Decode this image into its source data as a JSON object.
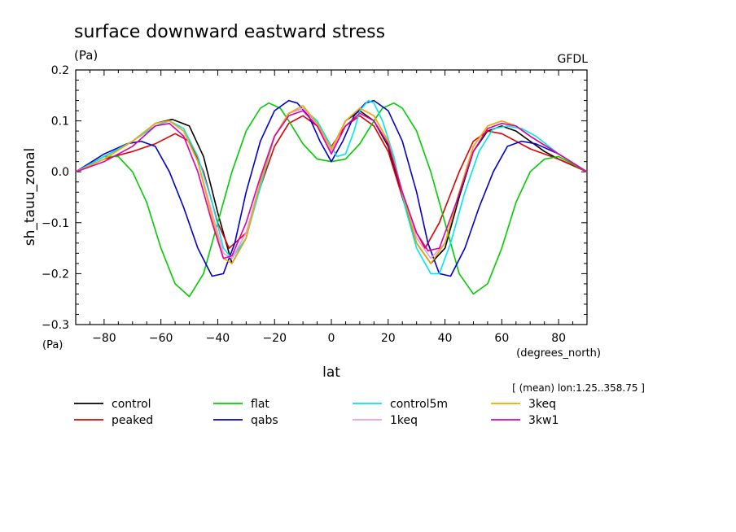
{
  "chart_data": {
    "type": "line",
    "title": "surface downward eastward stress",
    "units_label": "(Pa)",
    "source_label": "GFDL",
    "ylabel": "sh_tauu_zonal",
    "ylabel_units": "(Pa)",
    "xlabel": "lat",
    "xlabel_units": "(degrees_north)",
    "subset_note": "[ (mean) lon:1.25..358.75 ]",
    "xlim": [
      -90,
      90
    ],
    "ylim": [
      -0.3,
      0.2
    ],
    "xticks": [
      -80,
      -60,
      -40,
      -20,
      0,
      20,
      40,
      60,
      80
    ],
    "xtick_labels": [
      "−80",
      "−60",
      "−40",
      "−20",
      "0",
      "20",
      "40",
      "60",
      "80"
    ],
    "yticks": [
      -0.3,
      -0.2,
      -0.1,
      0.0,
      0.1,
      0.2
    ],
    "ytick_labels": [
      "−0.3",
      "−0.2",
      "−0.1",
      "0.0",
      "0.1",
      "0.2"
    ],
    "grid": false,
    "legend_position": "bottom",
    "series": [
      {
        "name": "control",
        "color": "#000000",
        "x": [
          -90,
          -80,
          -70,
          -62,
          -56,
          -50,
          -45,
          -40,
          -35,
          -30,
          -25,
          -20,
          -15,
          -10,
          -5,
          0,
          5,
          10,
          15,
          20,
          25,
          30,
          35,
          40,
          45,
          50,
          55,
          60,
          65,
          70,
          75,
          80,
          90
        ],
        "y": [
          0,
          0.03,
          0.06,
          0.095,
          0.103,
          0.09,
          0.03,
          -0.08,
          -0.18,
          -0.13,
          -0.02,
          0.07,
          0.115,
          0.125,
          0.095,
          0.04,
          0.1,
          0.12,
          0.1,
          0.05,
          -0.05,
          -0.14,
          -0.18,
          -0.15,
          -0.05,
          0.04,
          0.08,
          0.09,
          0.08,
          0.06,
          0.04,
          0.025,
          0
        ]
      },
      {
        "name": "peaked",
        "color": "#dd0000",
        "x": [
          -90,
          -80,
          -70,
          -62,
          -55,
          -50,
          -45,
          -40,
          -36,
          -30,
          -25,
          -20,
          -15,
          -10,
          -5,
          0,
          5,
          10,
          15,
          20,
          25,
          30,
          33,
          38,
          45,
          50,
          55,
          60,
          65,
          70,
          80,
          90
        ],
        "y": [
          0,
          0.025,
          0.04,
          0.055,
          0.075,
          0.06,
          0.0,
          -0.1,
          -0.15,
          -0.12,
          -0.03,
          0.05,
          0.095,
          0.11,
          0.09,
          0.05,
          0.09,
          0.11,
          0.09,
          0.04,
          -0.05,
          -0.12,
          -0.15,
          -0.1,
          0.0,
          0.06,
          0.08,
          0.075,
          0.06,
          0.045,
          0.025,
          0
        ]
      },
      {
        "name": "flat",
        "color": "#00cc00",
        "x": [
          -90,
          -80,
          -75,
          -70,
          -65,
          -60,
          -55,
          -50,
          -45,
          -40,
          -35,
          -30,
          -25,
          -22,
          -18,
          -15,
          -10,
          -5,
          0,
          5,
          10,
          15,
          18,
          22,
          25,
          30,
          35,
          40,
          45,
          50,
          55,
          60,
          65,
          70,
          75,
          80,
          90
        ],
        "y": [
          0,
          0.03,
          0.03,
          0.0,
          -0.06,
          -0.15,
          -0.22,
          -0.245,
          -0.2,
          -0.1,
          0.0,
          0.08,
          0.125,
          0.135,
          0.125,
          0.1,
          0.055,
          0.025,
          0.02,
          0.025,
          0.055,
          0.1,
          0.125,
          0.135,
          0.125,
          0.08,
          0.0,
          -0.1,
          -0.2,
          -0.24,
          -0.22,
          -0.15,
          -0.06,
          0.0,
          0.025,
          0.03,
          0
        ]
      },
      {
        "name": "qabs",
        "color": "#0000cc",
        "x": [
          -90,
          -80,
          -72,
          -67,
          -62,
          -57,
          -52,
          -47,
          -42,
          -38,
          -34,
          -30,
          -25,
          -20,
          -15,
          -12,
          -8,
          -4,
          0,
          4,
          8,
          12,
          15,
          20,
          25,
          30,
          34,
          38,
          42,
          47,
          52,
          57,
          62,
          67,
          72,
          80,
          90
        ],
        "y": [
          0,
          0.035,
          0.055,
          0.06,
          0.05,
          0.0,
          -0.07,
          -0.15,
          -0.205,
          -0.2,
          -0.14,
          -0.04,
          0.06,
          0.12,
          0.14,
          0.135,
          0.11,
          0.06,
          0.02,
          0.06,
          0.11,
          0.135,
          0.14,
          0.12,
          0.06,
          -0.04,
          -0.14,
          -0.2,
          -0.205,
          -0.15,
          -0.07,
          0.0,
          0.05,
          0.06,
          0.055,
          0.035,
          0
        ]
      },
      {
        "name": "control5m",
        "color": "#00e5ee",
        "x": [
          -90,
          -80,
          -70,
          -62,
          -57,
          -52,
          -47,
          -42,
          -38,
          -35,
          -30,
          -25,
          -20,
          -15,
          -10,
          -5,
          -2,
          0,
          2,
          5,
          8,
          10,
          13,
          15,
          18,
          22,
          26,
          30,
          35,
          38,
          42,
          47,
          52,
          57,
          62,
          67,
          72,
          80,
          90
        ],
        "y": [
          0,
          0.03,
          0.06,
          0.09,
          0.1,
          0.085,
          0.03,
          -0.06,
          -0.15,
          -0.17,
          -0.13,
          -0.03,
          0.07,
          0.115,
          0.125,
          0.1,
          0.07,
          0.05,
          0.03,
          0.035,
          0.08,
          0.12,
          0.14,
          0.135,
          0.1,
          0.03,
          -0.07,
          -0.15,
          -0.2,
          -0.2,
          -0.14,
          -0.04,
          0.04,
          0.085,
          0.09,
          0.085,
          0.07,
          0.035,
          0
        ]
      },
      {
        "name": "1keq",
        "color": "#ee99dd",
        "x": [
          -90,
          -80,
          -70,
          -62,
          -57,
          -52,
          -47,
          -42,
          -38,
          -35,
          -30,
          -25,
          -20,
          -15,
          -10,
          -5,
          0,
          5,
          10,
          15,
          20,
          25,
          30,
          35,
          40,
          45,
          50,
          55,
          60,
          65,
          70,
          80,
          90
        ],
        "y": [
          0,
          0.025,
          0.06,
          0.095,
          0.1,
          0.08,
          0.02,
          -0.08,
          -0.16,
          -0.17,
          -0.12,
          -0.02,
          0.07,
          0.115,
          0.125,
          0.095,
          0.04,
          0.1,
          0.125,
          0.11,
          0.06,
          -0.04,
          -0.13,
          -0.17,
          -0.14,
          -0.04,
          0.05,
          0.09,
          0.1,
          0.09,
          0.07,
          0.035,
          0
        ]
      },
      {
        "name": "3keq",
        "color": "#eeaa00",
        "x": [
          -90,
          -80,
          -70,
          -62,
          -57,
          -52,
          -47,
          -42,
          -38,
          -35,
          -30,
          -25,
          -20,
          -15,
          -10,
          -5,
          0,
          5,
          10,
          15,
          20,
          25,
          30,
          35,
          40,
          45,
          50,
          55,
          60,
          65,
          70,
          80,
          90
        ],
        "y": [
          0,
          0.025,
          0.06,
          0.095,
          0.1,
          0.08,
          0.02,
          -0.09,
          -0.17,
          -0.18,
          -0.13,
          -0.02,
          0.07,
          0.115,
          0.13,
          0.095,
          0.045,
          0.1,
          0.125,
          0.11,
          0.06,
          -0.04,
          -0.14,
          -0.18,
          -0.14,
          -0.04,
          0.05,
          0.09,
          0.1,
          0.09,
          0.07,
          0.035,
          0
        ]
      },
      {
        "name": "3kw1",
        "color": "#dd00aa",
        "x": [
          -90,
          -80,
          -70,
          -62,
          -57,
          -52,
          -47,
          -42,
          -38,
          -35,
          -30,
          -25,
          -20,
          -15,
          -10,
          -5,
          0,
          5,
          10,
          15,
          20,
          25,
          30,
          34,
          38,
          44,
          50,
          55,
          60,
          65,
          70,
          80,
          90
        ],
        "y": [
          0,
          0.02,
          0.05,
          0.09,
          0.095,
          0.07,
          0.0,
          -0.1,
          -0.17,
          -0.165,
          -0.1,
          -0.01,
          0.07,
          0.11,
          0.12,
          0.09,
          0.035,
          0.09,
          0.115,
          0.1,
          0.055,
          -0.04,
          -0.12,
          -0.155,
          -0.15,
          -0.06,
          0.04,
          0.085,
          0.095,
          0.09,
          0.07,
          0.035,
          0
        ]
      }
    ]
  }
}
